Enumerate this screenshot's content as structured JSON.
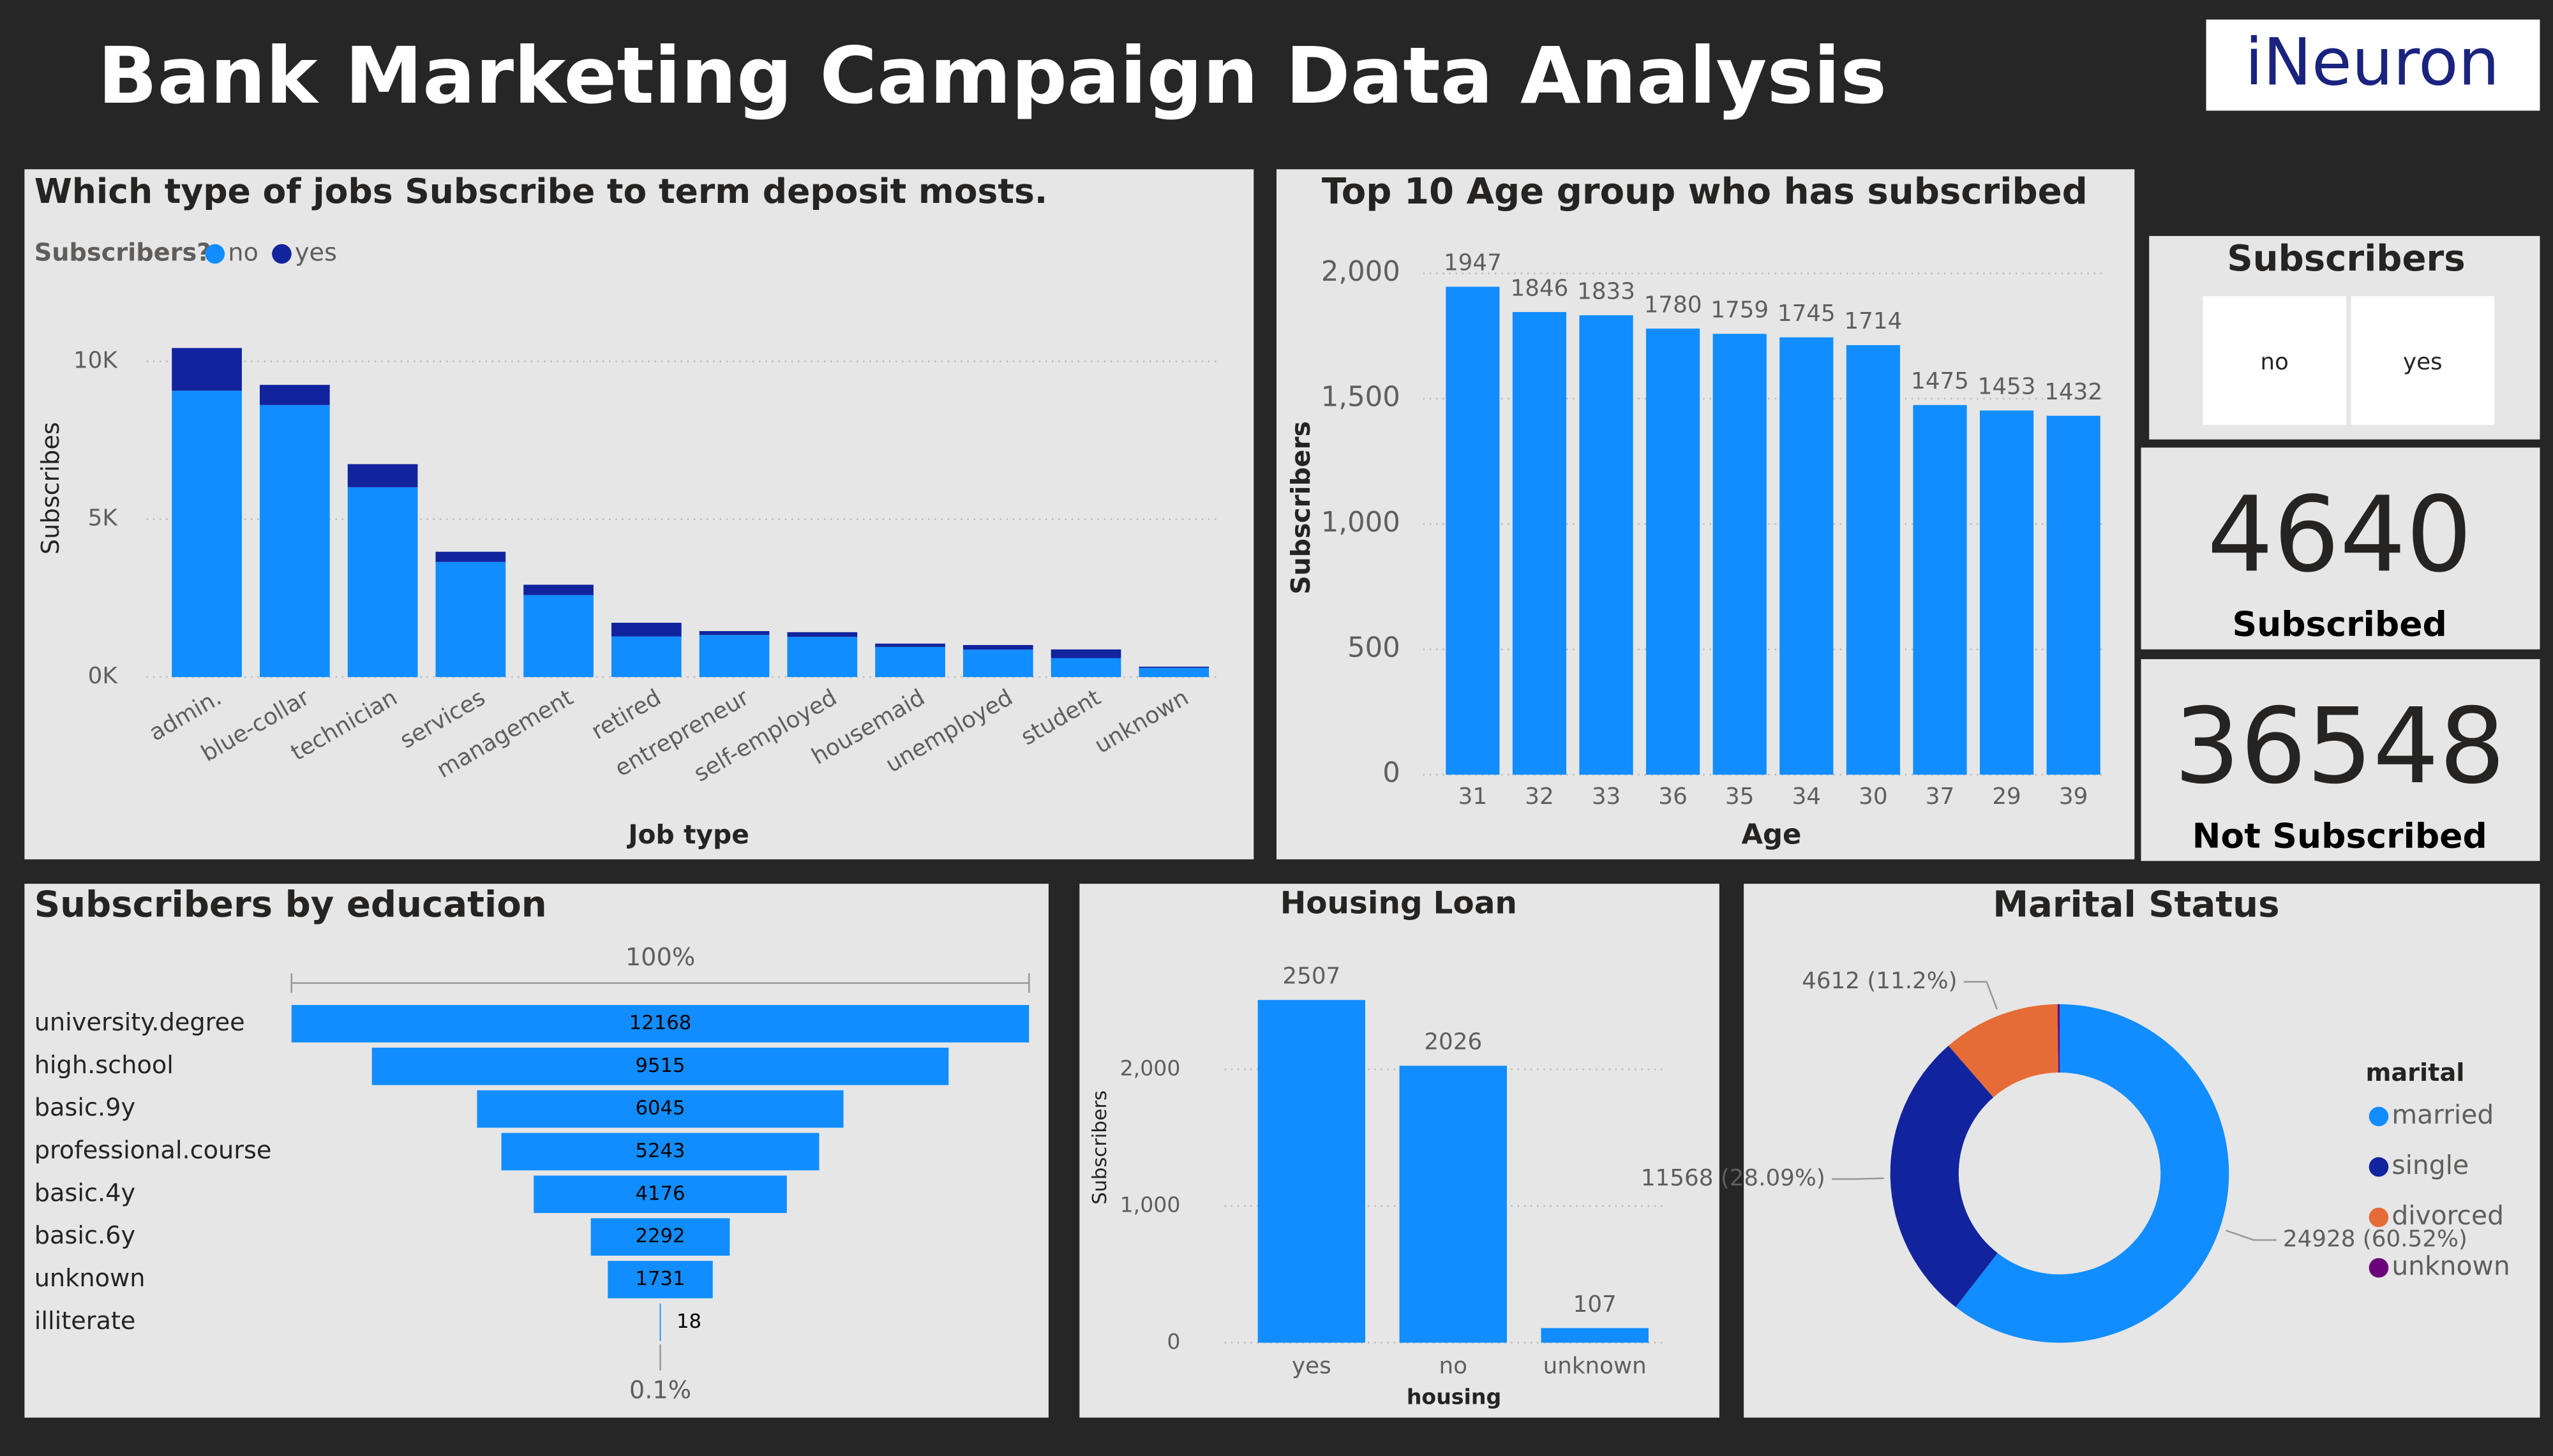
{
  "title": "Bank Marketing Campaign Data Analysis",
  "logo": "iNeuron",
  "slicer": {
    "title": "Subscribers",
    "options": [
      "no",
      "yes"
    ]
  },
  "cards": [
    {
      "value": 4640,
      "label": "Subscribed"
    },
    {
      "value": 36548,
      "label": "Not Subscribed"
    }
  ],
  "chart_data": [
    {
      "type": "bar",
      "stacked": true,
      "title": "Which type of jobs Subscribe to term deposit mosts.",
      "legend_title": "Subscribers?",
      "x_label": "Job type",
      "y_label": "Subscribes",
      "categories": [
        "admin.",
        "blue-collar",
        "technician",
        "services",
        "management",
        "retired",
        "entrepreneur",
        "self-employed",
        "housemaid",
        "unemployed",
        "student",
        "unknown"
      ],
      "series": [
        {
          "name": "no",
          "color": "#118dff",
          "values": [
            9070,
            8616,
            6013,
            3646,
            2596,
            1286,
            1332,
            1272,
            954,
            870,
            600,
            293
          ]
        },
        {
          "name": "yes",
          "color": "#12239e",
          "values": [
            1352,
            638,
            730,
            323,
            328,
            434,
            124,
            149,
            106,
            144,
            275,
            37
          ]
        }
      ],
      "ylim": [
        0,
        11000
      ],
      "yticks": [
        {
          "value": 0,
          "label": "0K"
        },
        {
          "value": 5000,
          "label": "5K"
        },
        {
          "value": 10000,
          "label": "10K"
        }
      ],
      "grid": true
    },
    {
      "type": "bar",
      "title": "Top 10 Age group who has subscribed",
      "x_label": "Age",
      "y_label": "Subscribers",
      "categories": [
        "31",
        "32",
        "33",
        "36",
        "35",
        "34",
        "30",
        "37",
        "29",
        "39"
      ],
      "values": [
        1947,
        1846,
        1833,
        1780,
        1759,
        1745,
        1714,
        1475,
        1453,
        1432
      ],
      "color": "#118dff",
      "ylim": [
        0,
        2100
      ],
      "yticks": [
        0,
        500,
        {
          "value": 1000,
          "label": "1,000"
        },
        {
          "value": 1500,
          "label": "1,500"
        },
        {
          "value": 2000,
          "label": "2,000"
        }
      ],
      "grid": true
    },
    {
      "type": "funnel",
      "title": "Subscribers by education",
      "top_label": "100%",
      "bottom_label": "0.1%",
      "categories": [
        "university.degree",
        "high.school",
        "basic.9y",
        "professional.course",
        "basic.4y",
        "basic.6y",
        "unknown",
        "illiterate"
      ],
      "values": [
        12168,
        9515,
        6045,
        5243,
        4176,
        2292,
        1731,
        18
      ],
      "color": "#118dff"
    },
    {
      "type": "bar",
      "title": "Housing Loan",
      "x_label": "housing",
      "y_label": "Subscribers",
      "categories": [
        "yes",
        "no",
        "unknown"
      ],
      "values": [
        2507,
        2026,
        107
      ],
      "color": "#118dff",
      "ylim": [
        0,
        2700
      ],
      "yticks": [
        0,
        {
          "value": 1000,
          "label": "1,000"
        },
        {
          "value": 2000,
          "label": "2,000"
        }
      ],
      "grid": true
    },
    {
      "type": "donut",
      "title": "Marital Status",
      "legend_title": "marital",
      "categories": [
        "married",
        "single",
        "divorced",
        "unknown"
      ],
      "values": [
        24928,
        11568,
        4612,
        80
      ],
      "value_labels": [
        "24928 (60.52%)",
        "11568 (28.09%)",
        "4612 (11.2%)",
        null
      ],
      "colors": [
        "#118dff",
        "#12239e",
        "#e66c37",
        "#6b007b"
      ]
    }
  ]
}
